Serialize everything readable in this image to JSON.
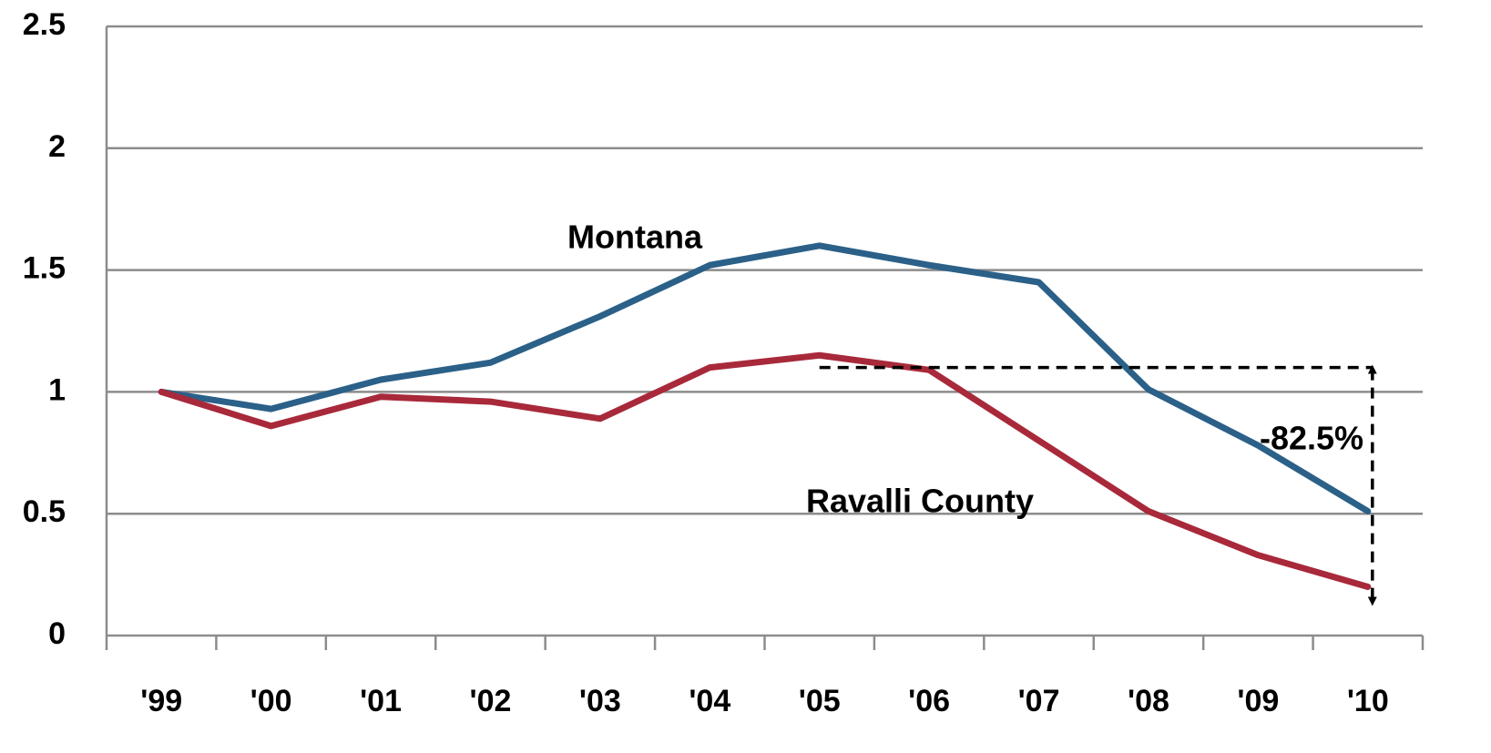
{
  "chart_data": {
    "type": "line",
    "categories": [
      "'99",
      "'00",
      "'01",
      "'02",
      "'03",
      "'04",
      "'05",
      "'06",
      "'07",
      "'08",
      "'09",
      "'10"
    ],
    "series": [
      {
        "name": "Montana",
        "color": "#2b6088",
        "values": [
          1,
          0.93,
          1.05,
          1.12,
          1.31,
          1.52,
          1.6,
          1.52,
          1.45,
          1.01,
          0.78,
          0.51
        ]
      },
      {
        "name": "Ravalli County",
        "color": "#a8293a",
        "values": [
          1,
          0.86,
          0.98,
          0.96,
          0.89,
          1.1,
          1.15,
          1.09,
          0.8,
          0.51,
          0.33,
          0.2
        ]
      }
    ],
    "annotations": [
      "-82.5%"
    ],
    "ylim": [
      0,
      2.5
    ],
    "yticks": [
      0,
      0.5,
      1,
      1.5,
      2,
      2.5
    ],
    "grid": true
  }
}
